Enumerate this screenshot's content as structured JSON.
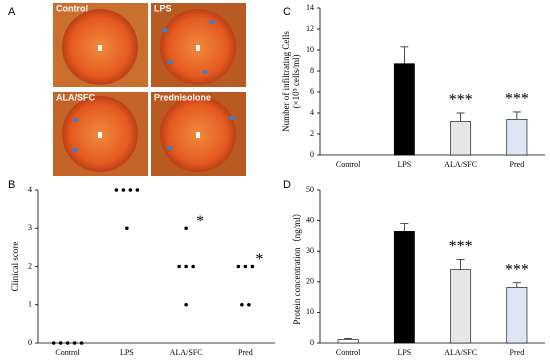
{
  "panel_labels": [
    "A",
    "B",
    "C",
    "D"
  ],
  "photos": {
    "labels": [
      "Control",
      "LPS",
      "ALA/SFC",
      "Prednisolone"
    ]
  },
  "chart_data": [
    {
      "type": "strip",
      "ylabel": [
        "Clinical score"
      ],
      "categories": [
        "Control",
        "LPS",
        "ALA/SFC",
        "Pred"
      ],
      "values": [
        [
          0,
          0,
          0,
          0,
          0
        ],
        [
          4,
          4,
          4,
          4,
          3
        ],
        [
          3,
          2,
          2,
          2,
          1
        ],
        [
          2,
          2,
          2,
          1,
          1
        ]
      ],
      "significance": [
        null,
        null,
        "*",
        "*"
      ],
      "color": "#000000",
      "ylim": [
        0,
        4
      ],
      "yticks": [
        0,
        1,
        2,
        3,
        4
      ]
    },
    {
      "type": "bar",
      "ylabel": [
        "Number of infiltrating Cells",
        "(×10⁵ cells/ml)"
      ],
      "categories": [
        "Control",
        "LPS",
        "ALA/SFC",
        "Pred"
      ],
      "values": [
        0,
        8.7,
        3.2,
        3.4
      ],
      "errors": [
        null,
        1.6,
        0.8,
        0.7
      ],
      "colors": [
        "#ffffff",
        "#000000",
        "#e6e6e6",
        "#dce6f4"
      ],
      "significance": [
        null,
        null,
        "***",
        "***"
      ],
      "ylim": [
        0,
        14
      ],
      "yticks": [
        0,
        2,
        4,
        6,
        8,
        10,
        12,
        14
      ]
    },
    {
      "type": "bar",
      "ylabel": [
        "Protein concentration（ng/ml）"
      ],
      "categories": [
        "Control",
        "LPS",
        "ALA/SFC",
        "Pred"
      ],
      "values": [
        1.2,
        36.5,
        24,
        18.2
      ],
      "errors": [
        0.3,
        2.5,
        3.3,
        1.5
      ],
      "colors": [
        "#ffffff",
        "#000000",
        "#e6e6e6",
        "#dce6f4"
      ],
      "significance": [
        null,
        null,
        "***",
        "***"
      ],
      "ylim": [
        0,
        50
      ],
      "yticks": [
        0,
        10,
        20,
        30,
        40,
        50
      ]
    }
  ]
}
